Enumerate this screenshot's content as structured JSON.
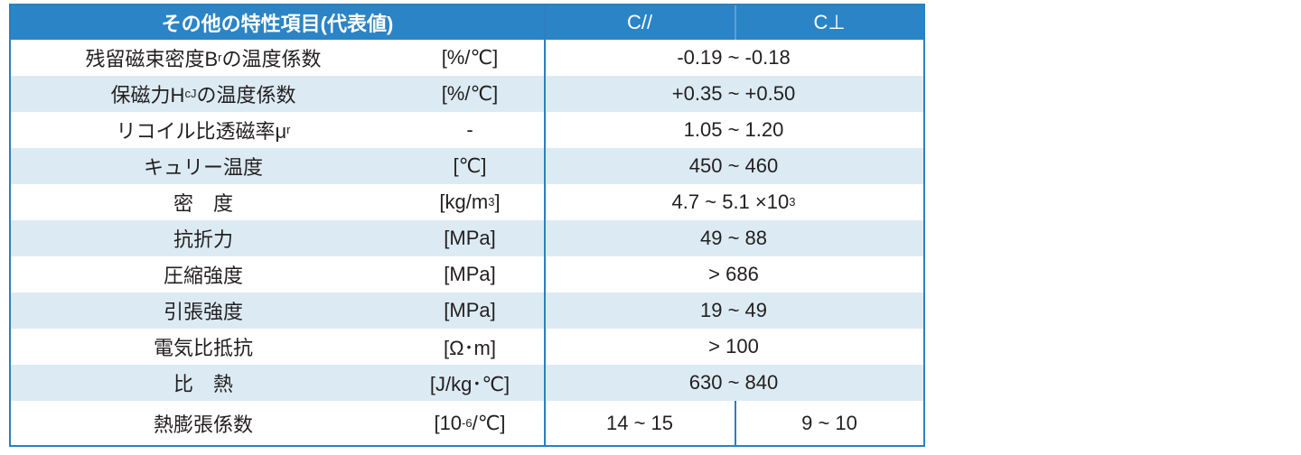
{
  "header": {
    "property": "その他の特性項目(代表値)",
    "c_parallel": "C//",
    "c_perp": "C⊥"
  },
  "rows": [
    {
      "name": "残留磁束密度B",
      "name_sub": "r",
      "name_after": "の温度係数",
      "unit": "[%/℃]",
      "value": "-0.19 ~ -0.18"
    },
    {
      "name": "保磁力H",
      "name_sub": "cJ",
      "name_after": "の温度係数",
      "unit": "[%/℃]",
      "value": "+0.35 ~ +0.50"
    },
    {
      "name": "リコイル比透磁率μ",
      "name_sub": "r",
      "name_after": "",
      "unit": "-",
      "value": "1.05 ~ 1.20"
    },
    {
      "name": "キュリー温度",
      "unit": "[℃]",
      "value": "450 ~ 460"
    },
    {
      "name": "密　度",
      "unit": "[kg/m",
      "unit_sup": "3",
      "unit_after": "]",
      "value": "4.7 ~ 5.1 ×10",
      "value_sup": "3"
    },
    {
      "name": "抗折力",
      "unit": "[MPa]",
      "value": "49 ~ 88"
    },
    {
      "name": "圧縮強度",
      "unit": "[MPa]",
      "value": "> 686"
    },
    {
      "name": "引張強度",
      "unit": "[MPa]",
      "value": "19 ~ 49"
    },
    {
      "name": "電気比抵抗",
      "unit": "[Ω･m]",
      "value": "> 100"
    },
    {
      "name": "比　熱",
      "unit": "[J/kg･℃]",
      "value": "630 ~ 840"
    },
    {
      "name": "熱膨張係数",
      "unit": "[10",
      "unit_sup": "-6",
      "unit_after": "/℃]",
      "value_par": "14 ~ 15",
      "value_perp": "9 ~ 10"
    }
  ],
  "colors": {
    "header_bg": "#2b84c6",
    "border": "#2c7fc1",
    "shade": "#dcebf3"
  }
}
